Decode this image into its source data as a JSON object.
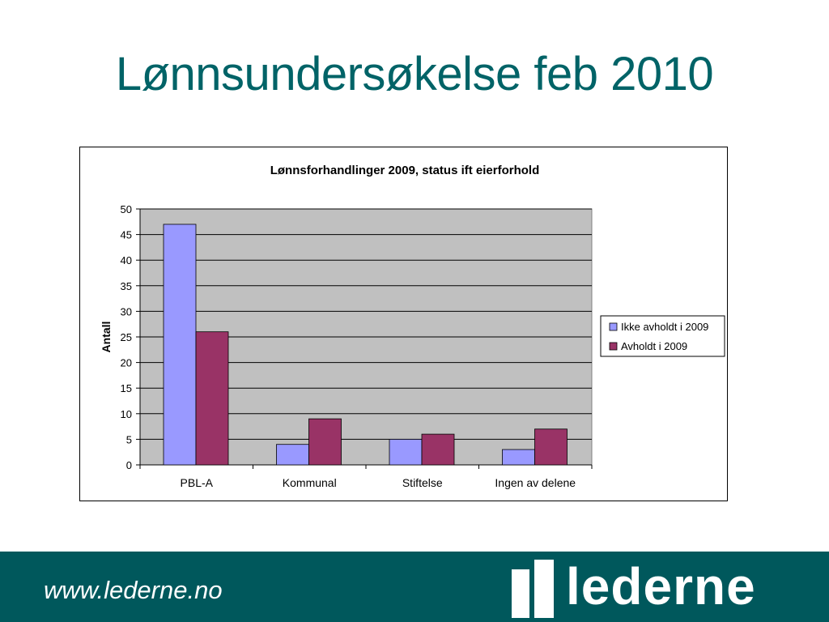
{
  "slide": {
    "title": "Lønnsundersøkelse feb 2010"
  },
  "footer": {
    "url": "www.lederne.no",
    "logo_text": "lederne"
  },
  "colors": {
    "title": "#006367",
    "footer_bg": "#00585c",
    "plot_bg": "#c0c0c0",
    "series1": "#9999ff",
    "series2": "#993366"
  },
  "chart_data": {
    "type": "bar",
    "title": "Lønnsforhandlinger 2009, status ift eierforhold",
    "ylabel": "Antall",
    "xlabel": "",
    "ylim": [
      0,
      50
    ],
    "yticks": [
      0,
      5,
      10,
      15,
      20,
      25,
      30,
      35,
      40,
      45,
      50
    ],
    "grid": true,
    "legend_position": "right",
    "categories": [
      "PBL-A",
      "Kommunal",
      "Stiftelse",
      "Ingen av delene"
    ],
    "series": [
      {
        "name": "Ikke avholdt i 2009",
        "color": "#9999ff",
        "values": [
          47,
          4,
          5,
          3
        ]
      },
      {
        "name": "Avholdt i 2009",
        "color": "#993366",
        "values": [
          26,
          9,
          6,
          7
        ]
      }
    ]
  }
}
